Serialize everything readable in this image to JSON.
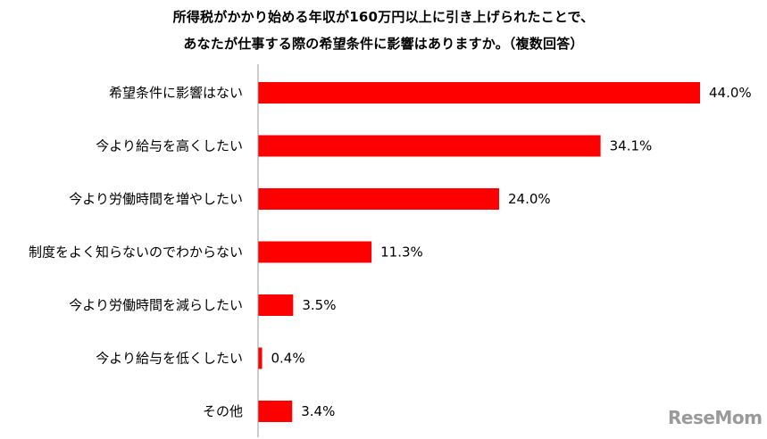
{
  "title_line1": "所得税がかかり始める年収が160万円以上に引き上げられたことで、",
  "title_line2": "あなたが仕事する際の希望条件に影響はありますか。（複数回答）",
  "logo_text": "ReseMom",
  "chart_data": {
    "type": "bar",
    "orientation": "horizontal",
    "categories": [
      "希望条件に影響はない",
      "今より給与を高くしたい",
      "今より労働時間を増やしたい",
      "制度をよく知らないのでわからない",
      "今より労働時間を減らしたい",
      "今より給与を低くしたい",
      "その他"
    ],
    "values": [
      44.0,
      34.1,
      24.0,
      11.3,
      3.5,
      0.4,
      3.4
    ],
    "value_labels": [
      "44.0%",
      "34.1%",
      "24.0%",
      "11.3%",
      "3.5%",
      "0.4%",
      "3.4%"
    ],
    "bar_color": "#ff0000",
    "xlim": [
      0,
      46
    ],
    "grid": false
  }
}
